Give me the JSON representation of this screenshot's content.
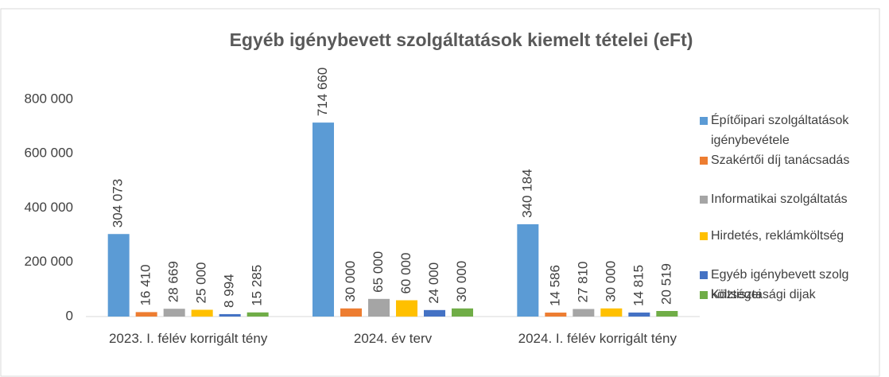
{
  "chart_data": {
    "type": "bar",
    "title": "Egyéb igénybevett szolgáltatások kiemelt tételei (eFt)",
    "categories": [
      "2023. I. félév korrigált tény",
      "2024. év terv",
      "2024. I. félév korrigált tény"
    ],
    "series": [
      {
        "name": "Építőipari szolgáltatások igénybevétele",
        "color": "#5b9bd5",
        "values": [
          304073,
          714660,
          340184
        ],
        "value_labels": [
          "304 073",
          "714 660",
          "340 184"
        ]
      },
      {
        "name": "Szakértői díj tanácsadás",
        "color": "#ed7d31",
        "values": [
          16410,
          30000,
          14586
        ],
        "value_labels": [
          "16 410",
          "30 000",
          "14 586"
        ]
      },
      {
        "name": "Informatikai szolgáltatás",
        "color": "#a5a5a5",
        "values": [
          28669,
          65000,
          27810
        ],
        "value_labels": [
          "28 669",
          "65 000",
          "27 810"
        ]
      },
      {
        "name": "Hirdetés, reklámköltség",
        "color": "#ffc000",
        "values": [
          25000,
          60000,
          30000
        ],
        "value_labels": [
          "25 000",
          "60 000",
          "30 000"
        ]
      },
      {
        "name": "Egyéb igénybevett szolg költségei",
        "color": "#4472c4",
        "values": [
          8994,
          24000,
          14815
        ],
        "value_labels": [
          "8 994",
          "24 000",
          "14 815"
        ]
      },
      {
        "name": "Köztisztasági dijak",
        "color": "#70ad47",
        "values": [
          15285,
          30000,
          20519
        ],
        "value_labels": [
          "15 285",
          "30 000",
          "20 519"
        ]
      }
    ],
    "ylim": [
      0,
      800000
    ],
    "yticks": [
      0,
      {
        "value": 200000,
        "label": "200 000"
      },
      {
        "value": 400000,
        "label": "400 000"
      },
      {
        "value": 600000,
        "label": "600 000"
      },
      {
        "value": 800000,
        "label": "800 000"
      }
    ],
    "grid": false,
    "legend": "right"
  }
}
